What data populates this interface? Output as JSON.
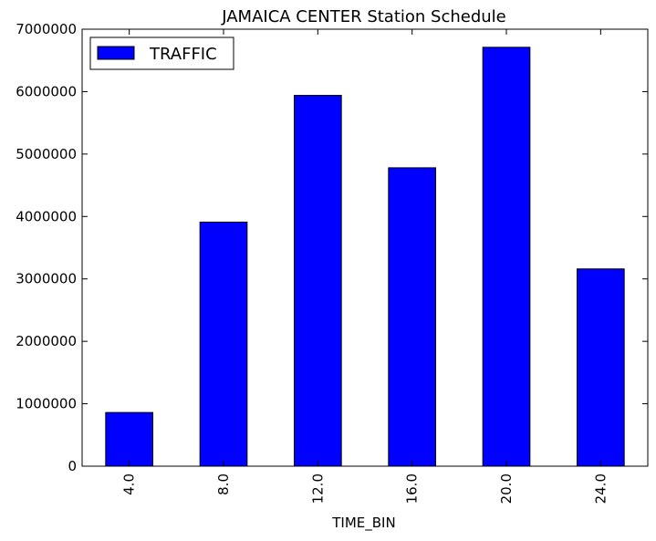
{
  "chart_data": {
    "type": "bar",
    "title": "JAMAICA CENTER Station Schedule",
    "xlabel": "TIME_BIN",
    "ylabel": "",
    "categories": [
      "4.0",
      "8.0",
      "12.0",
      "16.0",
      "20.0",
      "24.0"
    ],
    "series": [
      {
        "name": "TRAFFIC",
        "color": "#0000ff",
        "values": [
          860000,
          3910000,
          5940000,
          4780000,
          6710000,
          3160000
        ]
      }
    ],
    "ylim": [
      0,
      7000000
    ],
    "yticks": [
      0,
      1000000,
      2000000,
      3000000,
      4000000,
      5000000,
      6000000,
      7000000
    ],
    "ytick_labels": [
      "0",
      "1000000",
      "2000000",
      "3000000",
      "4000000",
      "5000000",
      "6000000",
      "7000000"
    ],
    "xtick_rotation": "vertical",
    "grid": false,
    "legend_position": "upper-left"
  }
}
